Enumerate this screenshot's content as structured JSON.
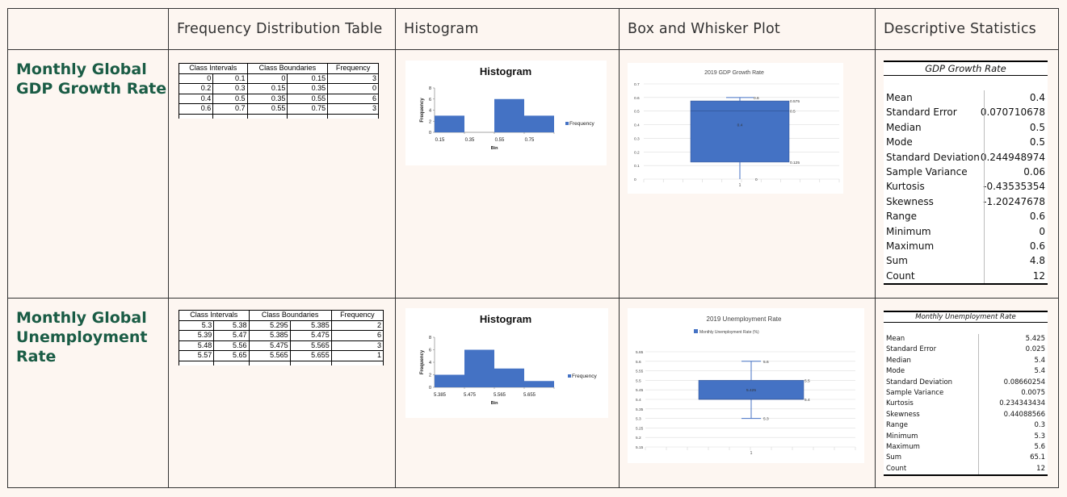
{
  "headers": {
    "frequency_table": "Frequency Distribution Table",
    "histogram": "Histogram",
    "box_plot": "Box and Whisker Plot",
    "descriptive_stats": "Descriptive Statistics"
  },
  "rows": {
    "gdp": {
      "title_line1": "Monthly Global",
      "title_line2": "GDP Growth Rate",
      "freq_table": {
        "col_class_intervals": "Class Intervals",
        "col_class_boundaries": "Class Boundaries",
        "col_frequency": "Frequency",
        "rows": [
          [
            "0",
            "0.1",
            "0",
            "0.15",
            "3"
          ],
          [
            "0.2",
            "0.3",
            "0.15",
            "0.35",
            "0"
          ],
          [
            "0.4",
            "0.5",
            "0.35",
            "0.55",
            "6"
          ],
          [
            "0.6",
            "0.7",
            "0.55",
            "0.75",
            "3"
          ]
        ]
      },
      "stats": {
        "title": "GDP Growth Rate",
        "items": [
          {
            "label": "Mean",
            "value": "0.4"
          },
          {
            "label": "Standard Error",
            "value": "0.070710678"
          },
          {
            "label": "Median",
            "value": "0.5"
          },
          {
            "label": "Mode",
            "value": "0.5"
          },
          {
            "label": "Standard Deviation",
            "value": "0.244948974"
          },
          {
            "label": "Sample Variance",
            "value": "0.06"
          },
          {
            "label": "Kurtosis",
            "value": "-0.43535354"
          },
          {
            "label": "Skewness",
            "value": "-1.20247678"
          },
          {
            "label": "Range",
            "value": "0.6"
          },
          {
            "label": "Minimum",
            "value": "0"
          },
          {
            "label": "Maximum",
            "value": "0.6"
          },
          {
            "label": "Sum",
            "value": "4.8"
          },
          {
            "label": "Count",
            "value": "12"
          }
        ]
      }
    },
    "unemp": {
      "title_line1": "Monthly Global",
      "title_line2": "Unemployment",
      "title_line3": "Rate",
      "freq_table": {
        "col_class_intervals": "Class Intervals",
        "col_class_boundaries": "Class Boundaries",
        "col_frequency": "Frequency",
        "rows": [
          [
            "5.3",
            "5.38",
            "5.295",
            "5.385",
            "2"
          ],
          [
            "5.39",
            "5.47",
            "5.385",
            "5.475",
            "6"
          ],
          [
            "5.48",
            "5.56",
            "5.475",
            "5.565",
            "3"
          ],
          [
            "5.57",
            "5.65",
            "5.565",
            "5.655",
            "1"
          ]
        ]
      },
      "stats": {
        "title": "Monthly Unemployment Rate",
        "items": [
          {
            "label": "Mean",
            "value": "5.425"
          },
          {
            "label": "Standard Error",
            "value": "0.025"
          },
          {
            "label": "Median",
            "value": "5.4"
          },
          {
            "label": "Mode",
            "value": "5.4"
          },
          {
            "label": "Standard Deviation",
            "value": "0.08660254"
          },
          {
            "label": "Sample Variance",
            "value": "0.0075"
          },
          {
            "label": "Kurtosis",
            "value": "0.234343434"
          },
          {
            "label": "Skewness",
            "value": "0.44088566"
          },
          {
            "label": "Range",
            "value": "0.3"
          },
          {
            "label": "Minimum",
            "value": "5.3"
          },
          {
            "label": "Maximum",
            "value": "5.6"
          },
          {
            "label": "Sum",
            "value": "65.1"
          },
          {
            "label": "Count",
            "value": "12"
          }
        ]
      }
    }
  },
  "chart_data": [
    {
      "id": "gdp-histogram",
      "type": "bar",
      "title": "Histogram",
      "xlabel": "Bin",
      "ylabel": "Frequency",
      "categories": [
        "0.15",
        "0.35",
        "0.55",
        "0.75"
      ],
      "series": [
        {
          "name": "Frequency",
          "values": [
            3,
            0,
            6,
            3
          ],
          "color": "#4472c4"
        }
      ],
      "ylim": [
        0,
        8
      ],
      "yticks": [
        "0",
        "2",
        "4",
        "6",
        "8"
      ],
      "legend": "right"
    },
    {
      "id": "gdp-boxplot",
      "type": "box",
      "title": "2019 GDP Growth Rate",
      "category": "1",
      "min": 0,
      "q1": 0.125,
      "median": 0.5,
      "q3": 0.575,
      "max": 0.6,
      "mean": 0.4,
      "labels": {
        "max": "0.6",
        "q3": "0.575",
        "median": "0.5",
        "mean": "0.4",
        "q1": "0.125",
        "min": "0"
      },
      "ylim": [
        0,
        0.7
      ],
      "yticks": [
        "0",
        "0.1",
        "0.2",
        "0.3",
        "0.4",
        "0.5",
        "0.6",
        "0.7"
      ],
      "color": "#4472c4"
    },
    {
      "id": "unemp-histogram",
      "type": "bar",
      "title": "Histogram",
      "xlabel": "Bin",
      "ylabel": "Frequency",
      "categories": [
        "5.385",
        "5.475",
        "5.565",
        "5.655"
      ],
      "series": [
        {
          "name": "Frequency",
          "values": [
            2,
            6,
            3,
            1
          ],
          "color": "#4472c4"
        }
      ],
      "ylim": [
        0,
        8
      ],
      "yticks": [
        "0",
        "2",
        "4",
        "6",
        "8"
      ],
      "legend": "right"
    },
    {
      "id": "unemp-boxplot",
      "type": "box",
      "title": "2019 Unemployment Rate",
      "legend_label": "Monthly Unemployment Rate (%)",
      "category": "1",
      "min": 5.3,
      "q1": 5.4,
      "median": 5.4,
      "q3": 5.5,
      "max": 5.6,
      "mean": 5.425,
      "labels": {
        "max": "5.6",
        "q3": "5.5",
        "mean": "5.425",
        "median": "5.4",
        "min": "5.3"
      },
      "ylim": [
        5.15,
        5.65
      ],
      "yticks": [
        "5.15",
        "5.2",
        "5.25",
        "5.3",
        "5.35",
        "5.4",
        "5.45",
        "5.5",
        "5.55",
        "5.6",
        "5.65"
      ],
      "color": "#4472c4"
    }
  ]
}
